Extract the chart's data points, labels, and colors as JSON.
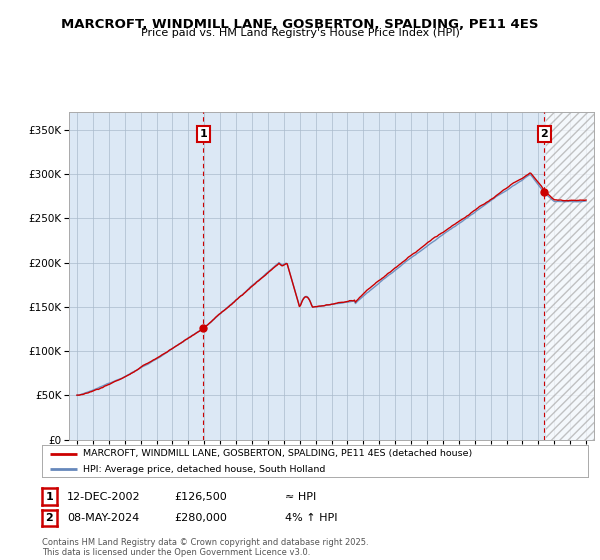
{
  "title": "MARCROFT, WINDMILL LANE, GOSBERTON, SPALDING, PE11 4ES",
  "subtitle": "Price paid vs. HM Land Registry's House Price Index (HPI)",
  "legend_line1": "MARCROFT, WINDMILL LANE, GOSBERTON, SPALDING, PE11 4ES (detached house)",
  "legend_line2": "HPI: Average price, detached house, South Holland",
  "sale1_date": "12-DEC-2002",
  "sale1_price": 126500,
  "sale1_hpi": "≈ HPI",
  "sale2_date": "08-MAY-2024",
  "sale2_price": 280000,
  "sale2_hpi": "4% ↑ HPI",
  "footer": "Contains HM Land Registry data © Crown copyright and database right 2025.\nThis data is licensed under the Open Government Licence v3.0.",
  "hpi_color": "#6688bb",
  "price_color": "#cc0000",
  "background_color": "#ffffff",
  "plot_bg_color": "#dce8f5",
  "grid_color": "#aabbcc",
  "hatch_color": "#c8d8e8",
  "ylim": [
    0,
    370000
  ],
  "yticks": [
    0,
    50000,
    100000,
    150000,
    200000,
    250000,
    300000,
    350000
  ],
  "xmin": 1994.5,
  "xmax": 2027.5,
  "sale1_x": 2002.95,
  "sale1_y": 126500,
  "sale2_x": 2024.37,
  "sale2_y": 280000,
  "hatch_start": 2024.5
}
